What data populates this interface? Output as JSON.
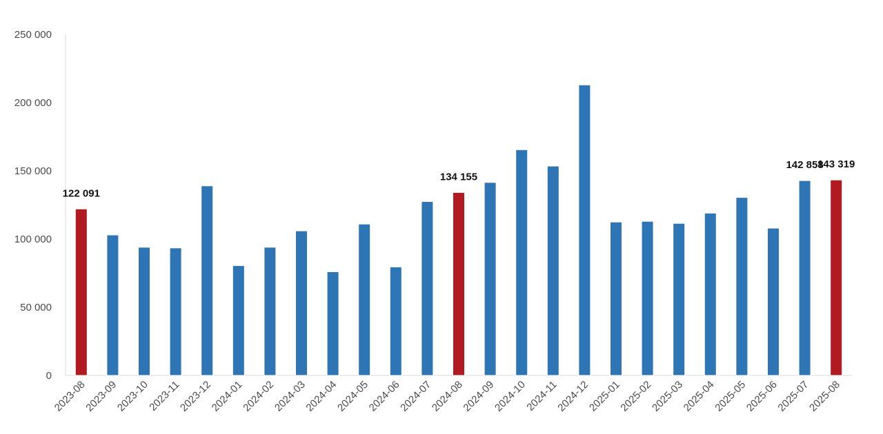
{
  "chart_data": {
    "type": "bar",
    "title": "",
    "xlabel": "",
    "ylabel": "",
    "ylim": [
      0,
      250000
    ],
    "yticks": [
      0,
      50000,
      100000,
      150000,
      200000,
      250000
    ],
    "ytick_labels": [
      "0",
      "50 000",
      "100 000",
      "150 000",
      "200 000",
      "250 000"
    ],
    "grid": false,
    "legend": "none",
    "categories": [
      "2023-08",
      "2023-09",
      "2023-10",
      "2023-11",
      "2023-12",
      "2024-01",
      "2024-02",
      "2024-03",
      "2024-04",
      "2024-05",
      "2024-06",
      "2024-07",
      "2024-08",
      "2024-09",
      "2024-10",
      "2024-11",
      "2024-12",
      "2025-01",
      "2025-02",
      "2025-03",
      "2025-04",
      "2025-05",
      "2025-06",
      "2025-07",
      "2025-08"
    ],
    "values": [
      122091,
      103000,
      94000,
      93500,
      139000,
      80500,
      94000,
      106000,
      76000,
      111000,
      79500,
      127500,
      134155,
      141500,
      165500,
      153500,
      213000,
      112500,
      113000,
      111500,
      119000,
      130500,
      108000,
      142858,
      143319
    ],
    "highlighted": [
      true,
      false,
      false,
      false,
      false,
      false,
      false,
      false,
      false,
      false,
      false,
      false,
      true,
      false,
      false,
      false,
      false,
      false,
      false,
      false,
      false,
      false,
      false,
      false,
      true
    ],
    "data_labels": [
      {
        "index": 0,
        "text": "122 091"
      },
      {
        "index": 12,
        "text": "134 155"
      },
      {
        "index": 23,
        "text": "142 858"
      },
      {
        "index": 24,
        "text": "143 319"
      }
    ],
    "colors": {
      "bar": "#2e75b6",
      "highlight": "#b01a20",
      "axis": "#d9d9d9"
    }
  }
}
